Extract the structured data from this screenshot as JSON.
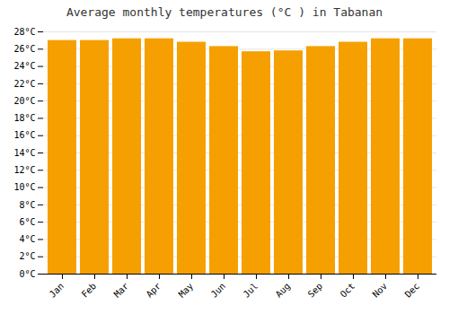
{
  "chart_data": {
    "type": "bar",
    "title": "Average monthly temperatures (°C ) in Tabanan",
    "categories": [
      "Jan",
      "Feb",
      "Mar",
      "Apr",
      "May",
      "Jun",
      "Jul",
      "Aug",
      "Sep",
      "Oct",
      "Nov",
      "Dec"
    ],
    "values": [
      27.0,
      27.0,
      27.2,
      27.2,
      26.8,
      26.3,
      25.7,
      25.8,
      26.3,
      26.8,
      27.2,
      27.2
    ],
    "color": "#F5A000",
    "ylim": [
      0,
      28
    ],
    "yticks": [
      {
        "value": 0,
        "label": "0°C"
      },
      {
        "value": 2,
        "label": "2°C"
      },
      {
        "value": 4,
        "label": "4°C"
      },
      {
        "value": 6,
        "label": "6°C"
      },
      {
        "value": 8,
        "label": "8°C"
      },
      {
        "value": 10,
        "label": "10°C"
      },
      {
        "value": 12,
        "label": "12°C"
      },
      {
        "value": 14,
        "label": "14°C"
      },
      {
        "value": 16,
        "label": "16°C"
      },
      {
        "value": 18,
        "label": "18°C"
      },
      {
        "value": 20,
        "label": "20°C"
      },
      {
        "value": 22,
        "label": "22°C"
      },
      {
        "value": 24,
        "label": "24°C"
      },
      {
        "value": 26,
        "label": "26°C"
      },
      {
        "value": 28,
        "label": "28°C"
      }
    ],
    "grid": true
  }
}
